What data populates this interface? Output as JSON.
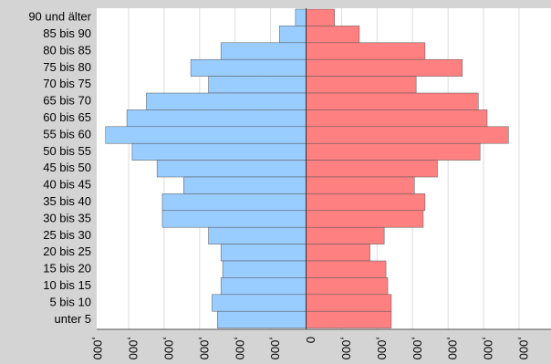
{
  "chart_data": {
    "type": "bar",
    "orientation": "horizontal-butterfly",
    "categories": [
      "90 und älter",
      "85 bis 90",
      "80 bis 85",
      "75 bis 80",
      "70 bis 75",
      "65 bis 70",
      "60 bis 65",
      "55 bis 60",
      "50 bis 55",
      "45 bis 50",
      "40 bis 45",
      "35 bis 40",
      "30 bis 35",
      "25 bis 30",
      "20 bis 25",
      "15 bis 20",
      "10 bis 15",
      "5 bis 10",
      "unter 5"
    ],
    "series": [
      {
        "values": [
          -300,
          -750,
          -2400,
          -3250,
          -2750,
          -4500,
          -5050,
          -5650,
          -4900,
          -4200,
          -3450,
          -4050,
          -4050,
          -2750,
          -2400,
          -2350,
          -2400,
          -2650,
          -2500
        ],
        "color": "#99ccff"
      },
      {
        "values": [
          800,
          1500,
          3350,
          4400,
          3100,
          4850,
          5100,
          5700,
          4900,
          3700,
          3050,
          3350,
          3300,
          2200,
          1800,
          2250,
          2300,
          2400,
          2400
        ],
        "color": "#ff8080"
      }
    ],
    "xlim": [
      -5900,
      6900
    ],
    "xticks": [
      -6000,
      -5000,
      -4000,
      -3000,
      -2000,
      -1000,
      0,
      1000,
      2000,
      3000,
      4000,
      5000,
      6000
    ],
    "xtick_labels": [
      ",000",
      ",000",
      ",000",
      ",000",
      ",000",
      ",000",
      "0",
      ",000",
      ",000",
      ",000",
      ",000",
      ",000",
      ",000"
    ],
    "grid": true
  }
}
